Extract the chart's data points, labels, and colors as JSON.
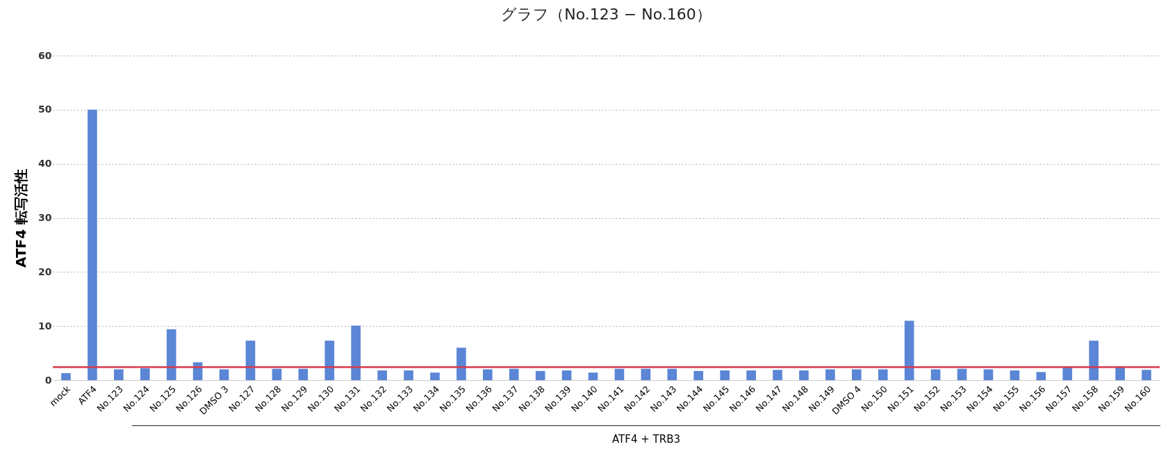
{
  "chart_data": {
    "type": "bar",
    "title": "グラフ（No.123 − No.160）",
    "ylabel": "ATF4 転写活性",
    "categories": [
      "mock",
      "ATF4",
      "No.123",
      "No.124",
      "No.125",
      "No.126",
      "DMSO 3",
      "No.127",
      "No.128",
      "No.129",
      "No.130",
      "No.131",
      "No.132",
      "No.133",
      "No.134",
      "No.135",
      "No.136",
      "No.137",
      "No.138",
      "No.139",
      "No.140",
      "No.141",
      "No.142",
      "No.143",
      "No.144",
      "No.145",
      "No.146",
      "No.147",
      "No.148",
      "No.149",
      "DMSO 4",
      "No.150",
      "No.151",
      "No.152",
      "No.153",
      "No.154",
      "No.155",
      "No.156",
      "No.157",
      "No.158",
      "No.159",
      "No.160"
    ],
    "values": [
      1.3,
      50,
      2.0,
      2.2,
      9.4,
      3.3,
      2.0,
      7.3,
      2.1,
      2.1,
      7.3,
      10.1,
      1.8,
      1.8,
      1.4,
      6.0,
      2.0,
      2.1,
      1.7,
      1.8,
      1.4,
      2.1,
      2.1,
      2.1,
      1.7,
      1.8,
      1.8,
      1.9,
      1.8,
      2.0,
      2.0,
      2.0,
      11.0,
      2.0,
      2.1,
      2.0,
      1.8,
      1.5,
      2.3,
      7.3,
      2.3,
      1.9
    ],
    "color": "#5b86d6",
    "ylim": [
      0,
      60
    ],
    "yticks": [
      0,
      10,
      20,
      30,
      40,
      50,
      60
    ],
    "grid": "y",
    "ref_lines": [
      {
        "axis": "y",
        "value": 2.4,
        "color": "#d9384a"
      }
    ],
    "annotations": [
      "ATF4 + TRB3"
    ]
  }
}
